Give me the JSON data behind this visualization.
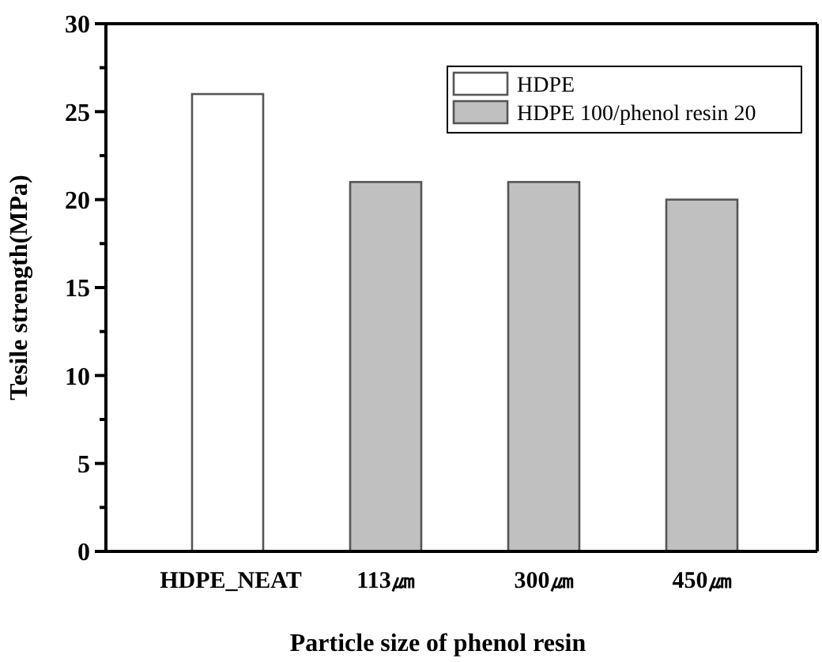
{
  "chart_data": {
    "type": "bar",
    "xlabel": "Particle size of phenol resin",
    "ylabel": "Tesile strength(MPa)",
    "categories": [
      "HDPE_NEAT",
      "113㎛",
      "300㎛",
      "450㎛"
    ],
    "series": [
      {
        "name": "HDPE",
        "color": "#ffffff",
        "values": [
          26,
          null,
          null,
          null
        ]
      },
      {
        "name": "HDPE 100/phenol resin 20",
        "color": "#c0c0c0",
        "values": [
          null,
          21,
          21,
          20
        ]
      }
    ],
    "ylim": [
      0,
      30
    ],
    "yticks": [
      0,
      {
        "value": 2.5,
        "label": null
      },
      5,
      {
        "value": 7.5,
        "label": null
      },
      10,
      {
        "value": 12.5,
        "label": null
      },
      15,
      {
        "value": 17.5,
        "label": null
      },
      20,
      {
        "value": 22.5,
        "label": null
      },
      25,
      {
        "value": 27.5,
        "label": null
      },
      30
    ],
    "grid": false,
    "legend": "top right"
  }
}
